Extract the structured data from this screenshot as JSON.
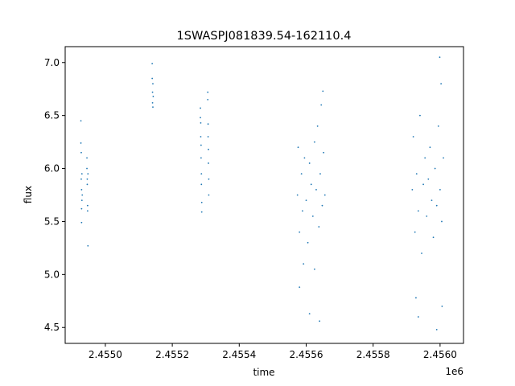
{
  "chart_data": {
    "type": "scatter",
    "title": "1SWASPJ081839.54-162110.4",
    "xlabel": "time",
    "ylabel": "flux",
    "x_offset_label": "1e6",
    "xlim": [
      2454880,
      2456070
    ],
    "ylim": [
      4.35,
      7.15
    ],
    "x_ticks": [
      2455000,
      2455200,
      2455400,
      2455600,
      2455800,
      2456000
    ],
    "x_tick_labels": [
      "2.4550",
      "2.4552",
      "2.4554",
      "2.4556",
      "2.4558",
      "2.4560"
    ],
    "y_ticks": [
      4.5,
      5.0,
      5.5,
      6.0,
      6.5,
      7.0
    ],
    "y_tick_labels": [
      "4.5",
      "5.0",
      "5.5",
      "6.0",
      "6.5",
      "7.0"
    ],
    "grid": false,
    "point_color": "#1f77b4",
    "series": [
      {
        "x": [
          2454927,
          2454927,
          2454928,
          2454928,
          2454929,
          2454929,
          2454929,
          2454930,
          2454930,
          2454931,
          2454945,
          2454945,
          2454946,
          2454946,
          2454947,
          2454947,
          2454948,
          2454948,
          2455140,
          2455140,
          2455141,
          2455141,
          2455142,
          2455142,
          2455143,
          2455284,
          2455284,
          2455285,
          2455285,
          2455286,
          2455286,
          2455287,
          2455287,
          2455288,
          2455288,
          2455306,
          2455306,
          2455307,
          2455307,
          2455308,
          2455308,
          2455309,
          2455309,
          2455574,
          2455576,
          2455580,
          2455586,
          2455589,
          2455595,
          2455600,
          2455605,
          2455610,
          2455615,
          2455620,
          2455625,
          2455630,
          2455634,
          2455638,
          2455642,
          2455645,
          2455648,
          2455652,
          2455656,
          2455580,
          2455610,
          2455640,
          2455650,
          2455592,
          2455625,
          2455917,
          2455920,
          2455925,
          2455930,
          2455935,
          2455940,
          2455945,
          2455950,
          2455955,
          2455960,
          2455965,
          2455970,
          2455975,
          2455980,
          2455985,
          2455990,
          2455995,
          2456000,
          2456005,
          2456010,
          2455935,
          2455990,
          2456003,
          2455928,
          2455999,
          2456006
        ],
        "y": [
          6.45,
          6.24,
          6.15,
          5.9,
          5.8,
          5.62,
          5.49,
          5.7,
          5.95,
          5.75,
          6.1,
          6.0,
          5.9,
          5.85,
          5.65,
          5.6,
          5.27,
          5.95,
          6.99,
          6.85,
          6.72,
          6.62,
          6.58,
          6.8,
          6.68,
          6.57,
          6.48,
          6.43,
          6.3,
          6.22,
          6.1,
          5.95,
          5.85,
          5.68,
          5.59,
          6.72,
          6.65,
          6.42,
          6.3,
          6.18,
          6.05,
          5.9,
          5.75,
          5.75,
          6.2,
          5.4,
          5.95,
          5.6,
          6.1,
          5.7,
          5.3,
          6.05,
          5.85,
          5.55,
          6.25,
          5.8,
          6.4,
          5.45,
          5.95,
          6.6,
          5.65,
          6.15,
          5.75,
          4.88,
          4.63,
          4.56,
          6.73,
          5.1,
          5.05,
          5.8,
          6.3,
          5.4,
          5.95,
          5.6,
          6.5,
          5.2,
          5.85,
          6.1,
          5.55,
          5.9,
          6.2,
          5.7,
          5.35,
          6.0,
          5.65,
          6.4,
          5.8,
          5.5,
          6.1,
          4.6,
          4.48,
          6.8,
          4.78,
          7.05,
          4.7
        ]
      }
    ]
  }
}
